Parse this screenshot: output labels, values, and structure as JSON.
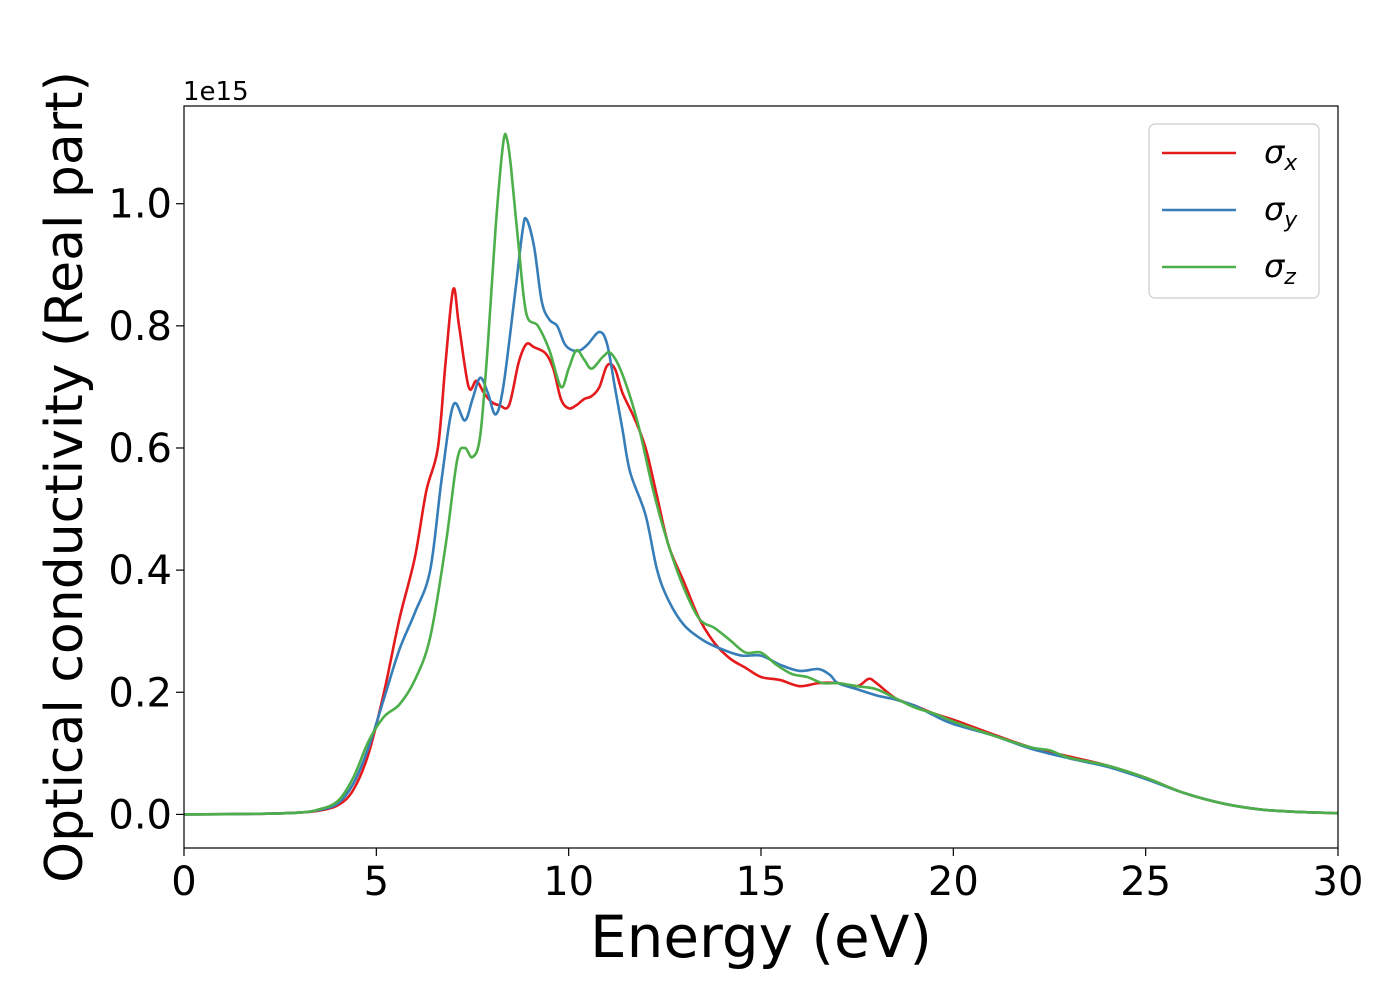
{
  "chart_data": {
    "type": "line",
    "xlabel": "Energy (eV)",
    "ylabel": "Optical conductivity (Real part)",
    "offset_text": "1e15",
    "xlim": [
      0,
      30
    ],
    "ylim": [
      -0.055,
      1.16
    ],
    "y_scale_factor": "1e15",
    "xticks": [
      0,
      5,
      10,
      15,
      20,
      25,
      30
    ],
    "xtick_labels": [
      "0",
      "5",
      "10",
      "15",
      "20",
      "25",
      "30"
    ],
    "yticks": [
      0.0,
      0.2,
      0.4,
      0.6,
      0.8,
      1.0
    ],
    "ytick_labels": [
      "0.0",
      "0.2",
      "0.4",
      "0.6",
      "0.8",
      "1.0"
    ],
    "grid": false,
    "legend_position": "top-right",
    "series": [
      {
        "name": "σx",
        "legend_symbol": "σ",
        "legend_subscript": "x",
        "color": "#e41a1c",
        "points": [
          [
            0,
            0
          ],
          [
            2,
            0.001
          ],
          [
            3,
            0.003
          ],
          [
            3.5,
            0.006
          ],
          [
            4,
            0.015
          ],
          [
            4.4,
            0.04
          ],
          [
            4.8,
            0.1
          ],
          [
            5.2,
            0.2
          ],
          [
            5.6,
            0.32
          ],
          [
            6.0,
            0.42
          ],
          [
            6.3,
            0.53
          ],
          [
            6.6,
            0.6
          ],
          [
            6.8,
            0.74
          ],
          [
            7.0,
            0.86
          ],
          [
            7.15,
            0.8
          ],
          [
            7.4,
            0.7
          ],
          [
            7.6,
            0.71
          ],
          [
            7.8,
            0.69
          ],
          [
            8.0,
            0.675
          ],
          [
            8.2,
            0.67
          ],
          [
            8.45,
            0.67
          ],
          [
            8.7,
            0.74
          ],
          [
            8.9,
            0.77
          ],
          [
            9.1,
            0.765
          ],
          [
            9.4,
            0.755
          ],
          [
            9.6,
            0.73
          ],
          [
            9.8,
            0.68
          ],
          [
            10.0,
            0.665
          ],
          [
            10.2,
            0.67
          ],
          [
            10.4,
            0.68
          ],
          [
            10.6,
            0.685
          ],
          [
            10.8,
            0.7
          ],
          [
            11.0,
            0.735
          ],
          [
            11.2,
            0.73
          ],
          [
            11.4,
            0.69
          ],
          [
            11.7,
            0.65
          ],
          [
            12.0,
            0.6
          ],
          [
            12.3,
            0.52
          ],
          [
            12.6,
            0.44
          ],
          [
            13.0,
            0.38
          ],
          [
            13.4,
            0.32
          ],
          [
            13.8,
            0.28
          ],
          [
            14.2,
            0.255
          ],
          [
            14.6,
            0.24
          ],
          [
            15.0,
            0.225
          ],
          [
            15.5,
            0.22
          ],
          [
            16.0,
            0.21
          ],
          [
            16.5,
            0.215
          ],
          [
            17.0,
            0.215
          ],
          [
            17.5,
            0.21
          ],
          [
            17.8,
            0.222
          ],
          [
            18.0,
            0.215
          ],
          [
            18.5,
            0.19
          ],
          [
            19.0,
            0.178
          ],
          [
            19.5,
            0.165
          ],
          [
            20.0,
            0.155
          ],
          [
            21.0,
            0.132
          ],
          [
            22.0,
            0.11
          ],
          [
            23.0,
            0.095
          ],
          [
            24.0,
            0.08
          ],
          [
            25.0,
            0.06
          ],
          [
            26.0,
            0.035
          ],
          [
            27.0,
            0.018
          ],
          [
            28.0,
            0.008
          ],
          [
            29.0,
            0.004
          ],
          [
            30.0,
            0.002
          ]
        ]
      },
      {
        "name": "σy",
        "legend_symbol": "σ",
        "legend_subscript": "y",
        "color": "#377eb8",
        "points": [
          [
            0,
            0
          ],
          [
            2,
            0.001
          ],
          [
            3,
            0.003
          ],
          [
            3.5,
            0.007
          ],
          [
            4,
            0.018
          ],
          [
            4.4,
            0.05
          ],
          [
            4.8,
            0.11
          ],
          [
            5.2,
            0.19
          ],
          [
            5.6,
            0.27
          ],
          [
            6.0,
            0.33
          ],
          [
            6.4,
            0.4
          ],
          [
            6.7,
            0.55
          ],
          [
            7.0,
            0.67
          ],
          [
            7.3,
            0.645
          ],
          [
            7.5,
            0.68
          ],
          [
            7.7,
            0.715
          ],
          [
            7.9,
            0.69
          ],
          [
            8.1,
            0.655
          ],
          [
            8.3,
            0.7
          ],
          [
            8.6,
            0.85
          ],
          [
            8.8,
            0.955
          ],
          [
            8.9,
            0.975
          ],
          [
            9.1,
            0.93
          ],
          [
            9.3,
            0.84
          ],
          [
            9.5,
            0.81
          ],
          [
            9.7,
            0.8
          ],
          [
            9.9,
            0.77
          ],
          [
            10.1,
            0.76
          ],
          [
            10.3,
            0.76
          ],
          [
            10.5,
            0.77
          ],
          [
            10.8,
            0.79
          ],
          [
            11.0,
            0.77
          ],
          [
            11.2,
            0.7
          ],
          [
            11.4,
            0.63
          ],
          [
            11.6,
            0.56
          ],
          [
            12.0,
            0.49
          ],
          [
            12.3,
            0.4
          ],
          [
            12.6,
            0.35
          ],
          [
            13.0,
            0.31
          ],
          [
            13.5,
            0.285
          ],
          [
            14.0,
            0.27
          ],
          [
            14.5,
            0.26
          ],
          [
            15.0,
            0.26
          ],
          [
            15.5,
            0.245
          ],
          [
            16.0,
            0.235
          ],
          [
            16.5,
            0.238
          ],
          [
            16.8,
            0.228
          ],
          [
            17.0,
            0.215
          ],
          [
            17.5,
            0.205
          ],
          [
            18.0,
            0.195
          ],
          [
            18.5,
            0.188
          ],
          [
            19.0,
            0.178
          ],
          [
            19.5,
            0.162
          ],
          [
            20.0,
            0.148
          ],
          [
            21.0,
            0.13
          ],
          [
            22.0,
            0.108
          ],
          [
            23.0,
            0.092
          ],
          [
            24.0,
            0.078
          ],
          [
            25.0,
            0.058
          ],
          [
            26.0,
            0.035
          ],
          [
            27.0,
            0.018
          ],
          [
            28.0,
            0.008
          ],
          [
            29.0,
            0.004
          ],
          [
            30.0,
            0.002
          ]
        ]
      },
      {
        "name": "σz",
        "legend_symbol": "σ",
        "legend_subscript": "z",
        "color": "#4daf4a",
        "points": [
          [
            0,
            0
          ],
          [
            2,
            0.001
          ],
          [
            3,
            0.003
          ],
          [
            3.5,
            0.008
          ],
          [
            4,
            0.022
          ],
          [
            4.4,
            0.06
          ],
          [
            4.8,
            0.12
          ],
          [
            5.2,
            0.16
          ],
          [
            5.6,
            0.18
          ],
          [
            6.0,
            0.22
          ],
          [
            6.4,
            0.29
          ],
          [
            6.8,
            0.44
          ],
          [
            7.1,
            0.58
          ],
          [
            7.3,
            0.6
          ],
          [
            7.5,
            0.585
          ],
          [
            7.7,
            0.62
          ],
          [
            7.9,
            0.77
          ],
          [
            8.1,
            0.96
          ],
          [
            8.3,
            1.1
          ],
          [
            8.4,
            1.105
          ],
          [
            8.5,
            1.06
          ],
          [
            8.7,
            0.93
          ],
          [
            8.9,
            0.82
          ],
          [
            9.2,
            0.8
          ],
          [
            9.5,
            0.76
          ],
          [
            9.8,
            0.7
          ],
          [
            10.0,
            0.73
          ],
          [
            10.2,
            0.76
          ],
          [
            10.4,
            0.745
          ],
          [
            10.6,
            0.73
          ],
          [
            10.9,
            0.75
          ],
          [
            11.1,
            0.755
          ],
          [
            11.4,
            0.72
          ],
          [
            11.8,
            0.64
          ],
          [
            12.2,
            0.53
          ],
          [
            12.6,
            0.44
          ],
          [
            13.0,
            0.37
          ],
          [
            13.4,
            0.32
          ],
          [
            13.8,
            0.305
          ],
          [
            14.2,
            0.285
          ],
          [
            14.6,
            0.265
          ],
          [
            15.0,
            0.265
          ],
          [
            15.4,
            0.245
          ],
          [
            15.8,
            0.23
          ],
          [
            16.2,
            0.225
          ],
          [
            16.6,
            0.215
          ],
          [
            17.0,
            0.215
          ],
          [
            17.5,
            0.21
          ],
          [
            18.0,
            0.205
          ],
          [
            18.5,
            0.19
          ],
          [
            19.0,
            0.175
          ],
          [
            19.5,
            0.165
          ],
          [
            20.0,
            0.152
          ],
          [
            21.0,
            0.13
          ],
          [
            22.0,
            0.11
          ],
          [
            22.5,
            0.105
          ],
          [
            23.0,
            0.093
          ],
          [
            24.0,
            0.08
          ],
          [
            25.0,
            0.06
          ],
          [
            26.0,
            0.035
          ],
          [
            27.0,
            0.018
          ],
          [
            28.0,
            0.008
          ],
          [
            29.0,
            0.004
          ],
          [
            30.0,
            0.002
          ]
        ]
      }
    ]
  }
}
